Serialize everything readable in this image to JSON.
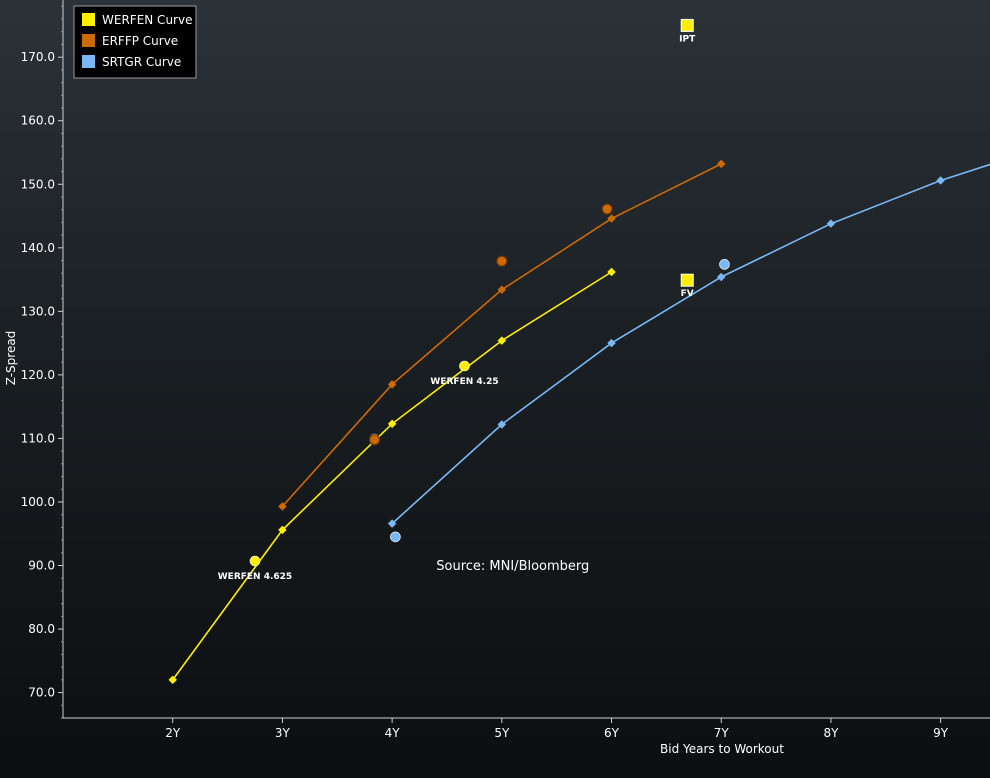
{
  "chart_data": {
    "type": "scatter",
    "xlabel": "Bid Years to Workout",
    "ylabel": "Z-Spread",
    "xlim": [
      1.0,
      9.45
    ],
    "ylim": [
      66,
      179
    ],
    "x_ticks": [
      {
        "value": 2,
        "label": "2Y"
      },
      {
        "value": 3,
        "label": "3Y"
      },
      {
        "value": 4,
        "label": "4Y"
      },
      {
        "value": 5,
        "label": "5Y"
      },
      {
        "value": 6,
        "label": "6Y"
      },
      {
        "value": 7,
        "label": "7Y"
      },
      {
        "value": 8,
        "label": "8Y"
      },
      {
        "value": 9,
        "label": "9Y"
      }
    ],
    "y_ticks": [
      {
        "value": 70,
        "label": "70.0"
      },
      {
        "value": 80,
        "label": "80.0"
      },
      {
        "value": 90,
        "label": "90.0"
      },
      {
        "value": 100,
        "label": "100.0"
      },
      {
        "value": 110,
        "label": "110.0"
      },
      {
        "value": 120,
        "label": "120.0"
      },
      {
        "value": 130,
        "label": "130.0"
      },
      {
        "value": 140,
        "label": "140.0"
      },
      {
        "value": 150,
        "label": "150.0"
      },
      {
        "value": 160,
        "label": "160.0"
      },
      {
        "value": 170,
        "label": "170.0"
      }
    ],
    "grid": false,
    "legend_position": "top-left",
    "series": [
      {
        "name": "WERFEN Curve",
        "color": "#ffee00",
        "curve": [
          {
            "x": 2.0,
            "y": 72.0
          },
          {
            "x": 3.0,
            "y": 95.6
          },
          {
            "x": 4.0,
            "y": 112.3
          },
          {
            "x": 5.0,
            "y": 125.4
          },
          {
            "x": 6.0,
            "y": 136.2
          }
        ],
        "bonds": [
          {
            "x": 2.75,
            "y": 90.7,
            "label": "WERFEN 4.625"
          },
          {
            "x": 3.84,
            "y": 109.9,
            "label": ""
          },
          {
            "x": 4.66,
            "y": 121.4,
            "label": "WERFEN 4.25"
          }
        ]
      },
      {
        "name": "ERFFP Curve",
        "color": "#cc6a00",
        "curve": [
          {
            "x": 3.0,
            "y": 99.3
          },
          {
            "x": 4.0,
            "y": 118.5
          },
          {
            "x": 5.0,
            "y": 133.4
          },
          {
            "x": 6.0,
            "y": 144.6
          },
          {
            "x": 7.0,
            "y": 153.2
          }
        ],
        "bonds": [
          {
            "x": 3.84,
            "y": 109.8
          },
          {
            "x": 5.0,
            "y": 137.9
          },
          {
            "x": 5.96,
            "y": 146.1
          }
        ]
      },
      {
        "name": "SRTGR Curve",
        "color": "#7ab8f5",
        "curve": [
          {
            "x": 4.0,
            "y": 96.6
          },
          {
            "x": 5.0,
            "y": 112.2
          },
          {
            "x": 6.0,
            "y": 125.0
          },
          {
            "x": 7.0,
            "y": 135.4
          },
          {
            "x": 8.0,
            "y": 143.8
          },
          {
            "x": 9.0,
            "y": 150.6
          },
          {
            "x": 9.5,
            "y": 153.4
          }
        ],
        "bonds": [
          {
            "x": 4.03,
            "y": 94.5
          },
          {
            "x": 7.03,
            "y": 137.4
          }
        ]
      }
    ],
    "markers": [
      {
        "x": 6.69,
        "y": 175.0,
        "label": "IPT",
        "color": "#ffee00"
      },
      {
        "x": 6.69,
        "y": 134.9,
        "label": "FV",
        "color": "#ffee00"
      }
    ],
    "annotations": [
      {
        "text": "Source: MNI/Bloomberg",
        "x": 5.1,
        "y": 89.3
      }
    ]
  }
}
